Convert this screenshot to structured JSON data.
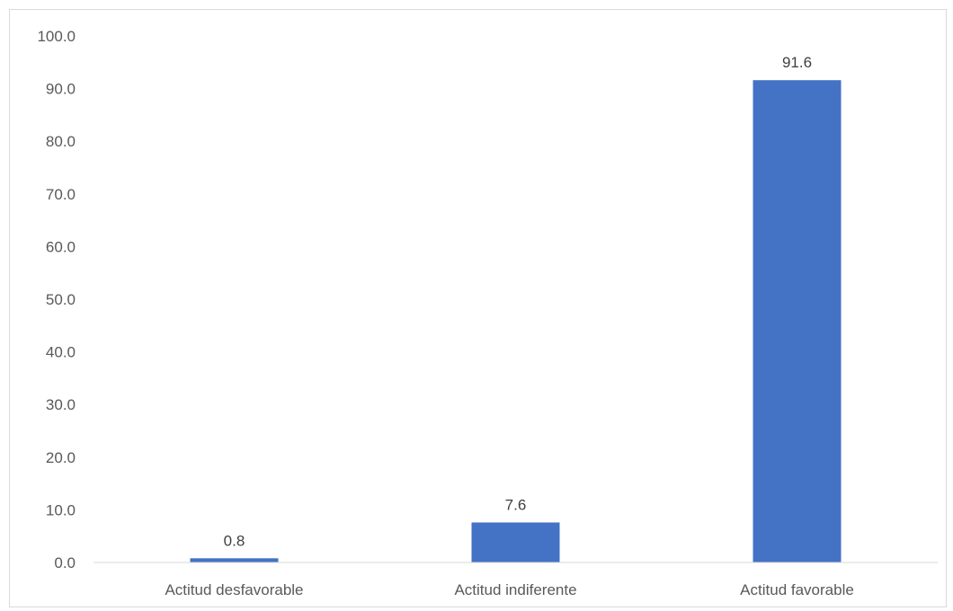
{
  "chart_data": {
    "type": "bar",
    "title": "",
    "xlabel": "",
    "ylabel": "",
    "categories": [
      "Actitud desfavorable",
      "Actitud indiferente",
      "Actitud favorable"
    ],
    "values": [
      0.8,
      7.6,
      91.6
    ],
    "value_labels": [
      "0.8",
      "7.6",
      "91.6"
    ],
    "ylim": [
      0,
      100
    ],
    "yticks": [
      0,
      10,
      20,
      30,
      40,
      50,
      60,
      70,
      80,
      90,
      100
    ],
    "ytick_labels": [
      "0.0",
      "10.0",
      "20.0",
      "30.0",
      "40.0",
      "50.0",
      "60.0",
      "70.0",
      "80.0",
      "90.0",
      "100.0"
    ],
    "grid": false,
    "legend": "none",
    "bar_color": "#4472c4"
  }
}
